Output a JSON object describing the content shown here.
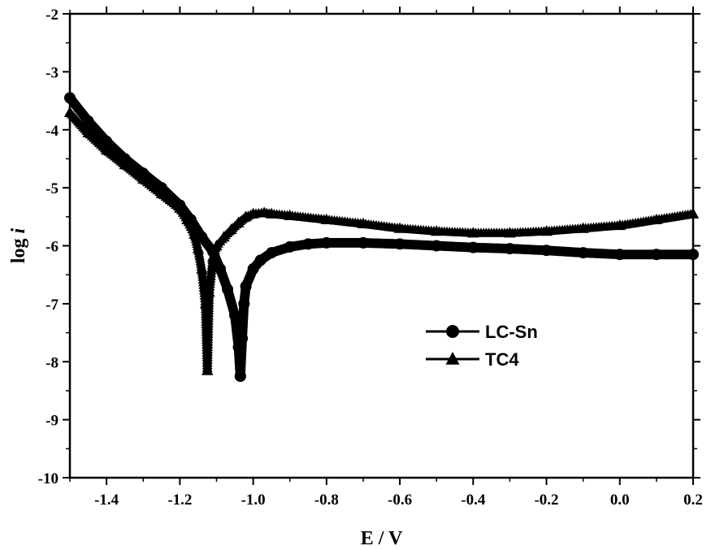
{
  "chart_data": {
    "type": "line",
    "xlabel": "E / V",
    "ylabel_prefix": "log ",
    "ylabel_var": "i",
    "xlim": [
      -1.5,
      0.2
    ],
    "ylim": [
      -10,
      -2
    ],
    "x_ticks": [
      -1.4,
      -1.2,
      -1.0,
      -0.8,
      -0.6,
      -0.4,
      -0.2,
      0.0,
      0.2
    ],
    "x_tick_labels": [
      "-1.4",
      "-1.2",
      "-1.0",
      "-0.8",
      "-0.6",
      "-0.4",
      "-0.2",
      "0.0",
      "0.2"
    ],
    "y_ticks": [
      -10,
      -9,
      -8,
      -7,
      -6,
      -5,
      -4,
      -3,
      -2
    ],
    "y_tick_labels": [
      "-10",
      "-9",
      "-8",
      "-7",
      "-6",
      "-5",
      "-4",
      "-3",
      "-2"
    ],
    "grid": false,
    "legend_position": "middle-right",
    "series": [
      {
        "name": "LC-Sn",
        "marker": "circle",
        "color": "#000000",
        "cathodic": {
          "x": [
            -1.5,
            -1.45,
            -1.4,
            -1.35,
            -1.3,
            -1.25,
            -1.2,
            -1.17,
            -1.14,
            -1.11,
            -1.09,
            -1.07,
            -1.05,
            -1.04,
            -1.035
          ],
          "y": [
            -3.45,
            -3.85,
            -4.2,
            -4.5,
            -4.75,
            -5.0,
            -5.3,
            -5.55,
            -5.85,
            -6.1,
            -6.4,
            -6.75,
            -7.2,
            -7.75,
            -8.25
          ]
        },
        "anodic": {
          "x": [
            -1.035,
            -1.03,
            -1.025,
            -1.02,
            -1.0,
            -0.98,
            -0.95,
            -0.9,
            -0.85,
            -0.8,
            -0.7,
            -0.6,
            -0.5,
            -0.4,
            -0.3,
            -0.2,
            -0.1,
            0.0,
            0.1,
            0.2
          ],
          "y": [
            -8.25,
            -7.6,
            -7.0,
            -6.7,
            -6.4,
            -6.25,
            -6.12,
            -6.02,
            -5.97,
            -5.95,
            -5.95,
            -5.97,
            -6.0,
            -6.03,
            -6.05,
            -6.08,
            -6.12,
            -6.15,
            -6.15,
            -6.15
          ]
        }
      },
      {
        "name": "TC4",
        "marker": "triangle",
        "color": "#000000",
        "cathodic": {
          "x": [
            -1.5,
            -1.45,
            -1.4,
            -1.35,
            -1.3,
            -1.25,
            -1.2,
            -1.18,
            -1.16,
            -1.15,
            -1.14,
            -1.13,
            -1.125
          ],
          "y": [
            -3.7,
            -4.05,
            -4.35,
            -4.6,
            -4.85,
            -5.1,
            -5.35,
            -5.55,
            -5.8,
            -6.05,
            -6.4,
            -7.0,
            -8.15
          ]
        },
        "anodic": {
          "x": [
            -1.125,
            -1.12,
            -1.11,
            -1.1,
            -1.08,
            -1.06,
            -1.04,
            -1.02,
            -1.0,
            -0.97,
            -0.95,
            -0.9,
            -0.8,
            -0.7,
            -0.6,
            -0.5,
            -0.4,
            -0.3,
            -0.2,
            -0.1,
            0.0,
            0.1,
            0.2
          ],
          "y": [
            -8.15,
            -6.8,
            -6.2,
            -6.0,
            -5.85,
            -5.72,
            -5.6,
            -5.5,
            -5.45,
            -5.43,
            -5.45,
            -5.48,
            -5.55,
            -5.62,
            -5.7,
            -5.75,
            -5.78,
            -5.78,
            -5.75,
            -5.7,
            -5.65,
            -5.55,
            -5.45
          ]
        }
      }
    ]
  }
}
